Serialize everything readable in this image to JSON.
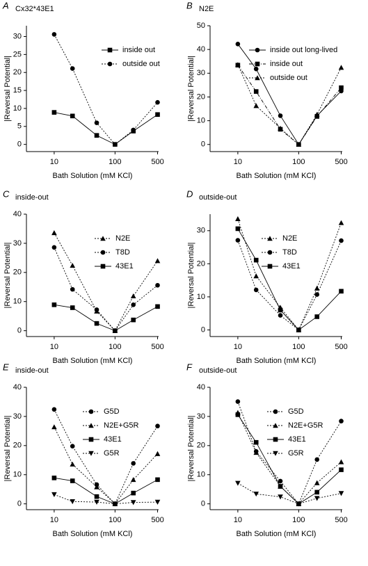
{
  "chart_data": [
    {
      "type": "line",
      "label": "A",
      "title": "Cx32*43E1",
      "xlabel": "Bath Solution (mM KCl)",
      "ylabel": "|Reversal Potential|",
      "x": [
        10,
        20,
        50,
        100,
        200,
        500
      ],
      "xscale": "log",
      "xlim": [
        3.5,
        520
      ],
      "xticks": [
        10,
        100,
        500
      ],
      "ylim": [
        -2,
        33
      ],
      "yticks": [
        0,
        5,
        10,
        15,
        20,
        25,
        30
      ],
      "series": [
        {
          "name": "inside out",
          "color": "#000000",
          "marker": "square",
          "dash": "solid",
          "values": [
            8.9,
            7.9,
            2.5,
            0,
            3.7,
            8.3
          ]
        },
        {
          "name": "outside out",
          "color": "#000000",
          "marker": "circle",
          "dash": "dotted",
          "values": [
            30.6,
            21.1,
            6.0,
            0,
            4.0,
            11.7
          ]
        }
      ]
    },
    {
      "type": "line",
      "label": "B",
      "title": "N2E",
      "xlabel": "Bath Solution (mM KCl)",
      "ylabel": "|Reversal Potential|",
      "x": [
        10,
        20,
        50,
        100,
        200,
        500
      ],
      "xscale": "log",
      "xlim": [
        3.5,
        520
      ],
      "xticks": [
        10,
        100,
        500
      ],
      "ylim": [
        -3,
        50
      ],
      "yticks": [
        0,
        10,
        20,
        30,
        40,
        50
      ],
      "series": [
        {
          "name": "inside out long-lived",
          "color": "#000000",
          "marker": "circle",
          "dash": "solid",
          "values": [
            42.3,
            31.8,
            12.1,
            0,
            12.1,
            22.5
          ]
        },
        {
          "name": "inside out",
          "color": "#000000",
          "marker": "square",
          "dash": "dashdot",
          "values": [
            33.4,
            22.3,
            6.4,
            0,
            11.8,
            23.9
          ]
        },
        {
          "name": "outside out",
          "color": "#000000",
          "marker": "triangle",
          "dash": "dotted",
          "values": [
            33.6,
            16.3,
            6.8,
            0,
            12.6,
            32.4
          ]
        }
      ]
    },
    {
      "type": "line",
      "label": "C",
      "title": "inside-out",
      "xlabel": "Bath Solution (mM KCl)",
      "ylabel": "|Reversal Potential|",
      "x": [
        10,
        20,
        50,
        100,
        200,
        500
      ],
      "xscale": "log",
      "xlim": [
        3.5,
        520
      ],
      "xticks": [
        10,
        100,
        500
      ],
      "ylim": [
        -2,
        40
      ],
      "yticks": [
        0,
        10,
        20,
        30,
        40
      ],
      "series": [
        {
          "name": "N2E",
          "color": "#000000",
          "marker": "triangle",
          "dash": "dotted",
          "values": [
            33.6,
            22.4,
            6.7,
            0,
            11.9,
            24.0
          ]
        },
        {
          "name": "T8D",
          "color": "#000000",
          "marker": "circle",
          "dash": "dotted",
          "values": [
            28.6,
            14.2,
            7.2,
            0,
            8.9,
            15.6
          ]
        },
        {
          "name": "43E1",
          "color": "#000000",
          "marker": "square",
          "dash": "solid",
          "values": [
            8.9,
            7.9,
            2.5,
            0,
            3.7,
            8.3
          ]
        }
      ]
    },
    {
      "type": "line",
      "label": "D",
      "title": "outside-out",
      "xlabel": "Bath Solution (mM KCl)",
      "ylabel": "|Reversal Potential|",
      "x": [
        10,
        20,
        50,
        100,
        200,
        500
      ],
      "xscale": "log",
      "xlim": [
        3.5,
        520
      ],
      "xticks": [
        10,
        100,
        500
      ],
      "ylim": [
        -2,
        35
      ],
      "yticks": [
        0,
        10,
        20,
        30
      ],
      "series": [
        {
          "name": "N2E",
          "color": "#000000",
          "marker": "triangle",
          "dash": "dotted",
          "values": [
            33.6,
            16.3,
            6.8,
            0,
            12.6,
            32.4
          ]
        },
        {
          "name": "T8D",
          "color": "#000000",
          "marker": "circle",
          "dash": "dotted",
          "values": [
            27.1,
            12.1,
            4.4,
            0,
            10.7,
            27.0
          ]
        },
        {
          "name": "43E1",
          "color": "#000000",
          "marker": "square",
          "dash": "solid",
          "values": [
            30.6,
            21.1,
            6.0,
            0,
            4.0,
            11.7
          ]
        }
      ]
    },
    {
      "type": "line",
      "label": "E",
      "title": "inside-out",
      "xlabel": "Bath Solution (mM KCl)",
      "ylabel": "|Reversal Potential|",
      "x": [
        10,
        20,
        50,
        100,
        200,
        500
      ],
      "xscale": "log",
      "xlim": [
        3.5,
        520
      ],
      "xticks": [
        10,
        100,
        500
      ],
      "ylim": [
        -2,
        40
      ],
      "yticks": [
        0,
        10,
        20,
        30,
        40
      ],
      "series": [
        {
          "name": "G5D",
          "color": "#000000",
          "marker": "circle",
          "dash": "dotted",
          "values": [
            32.4,
            19.8,
            6.6,
            0,
            13.9,
            26.7
          ]
        },
        {
          "name": "N2E+G5R",
          "color": "#000000",
          "marker": "triangle",
          "dash": "dotted",
          "values": [
            26.4,
            13.6,
            5.8,
            0,
            8.3,
            17.2
          ]
        },
        {
          "name": "43E1",
          "color": "#000000",
          "marker": "square",
          "dash": "solid",
          "values": [
            8.9,
            7.9,
            2.5,
            0,
            3.7,
            8.3
          ]
        },
        {
          "name": "G5R",
          "color": "#000000",
          "marker": "invtriangle",
          "dash": "dotted",
          "values": [
            3.2,
            0.8,
            0.6,
            0,
            0.5,
            0.6
          ]
        }
      ]
    },
    {
      "type": "line",
      "label": "F",
      "title": "outside-out",
      "xlabel": "Bath Solution (mM KCl)",
      "ylabel": "|Reversal Potential|",
      "x": [
        10,
        20,
        50,
        100,
        200,
        500
      ],
      "xscale": "log",
      "xlim": [
        3.5,
        520
      ],
      "xticks": [
        10,
        100,
        500
      ],
      "ylim": [
        -2,
        40
      ],
      "yticks": [
        0,
        10,
        20,
        30,
        40
      ],
      "series": [
        {
          "name": "G5D",
          "color": "#000000",
          "marker": "circle",
          "dash": "dotted",
          "values": [
            35.1,
            18.0,
            7.8,
            0,
            15.2,
            28.4
          ]
        },
        {
          "name": "N2E+G5R",
          "color": "#000000",
          "marker": "triangle",
          "dash": "dotted",
          "values": [
            31.3,
            17.6,
            6.0,
            0,
            7.2,
            14.4
          ]
        },
        {
          "name": "43E1",
          "color": "#000000",
          "marker": "square",
          "dash": "solid",
          "values": [
            30.6,
            21.1,
            6.0,
            0,
            4.0,
            11.7
          ]
        },
        {
          "name": "G5R",
          "color": "#000000",
          "marker": "invtriangle",
          "dash": "dotted",
          "values": [
            7.1,
            3.4,
            2.4,
            0,
            1.9,
            3.6
          ]
        }
      ]
    }
  ]
}
